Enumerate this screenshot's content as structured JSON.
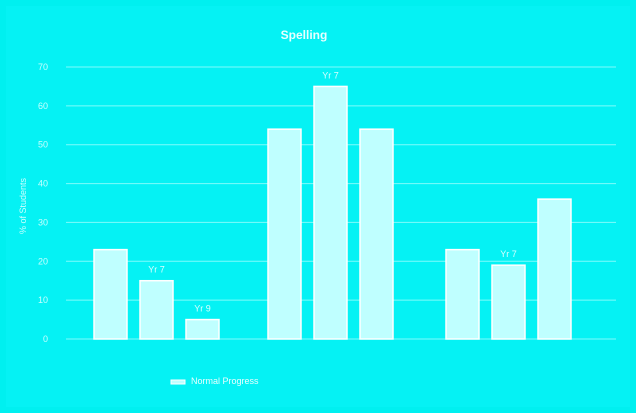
{
  "chart_data": {
    "type": "bar",
    "title": "Spelling",
    "ylabel": "% of Students",
    "xlabel": "",
    "ylim": [
      0,
      70
    ],
    "yticks": [
      0,
      10,
      20,
      30,
      40,
      50,
      60,
      70
    ],
    "categories": [
      "",
      "",
      ""
    ],
    "series": [
      {
        "name": "",
        "values": [
          23,
          54,
          23
        ],
        "bar_labels": [
          "",
          "",
          ""
        ]
      },
      {
        "name": "",
        "values": [
          15,
          65,
          19
        ],
        "bar_labels": [
          "Yr 7",
          "Yr 7",
          "Yr 7"
        ]
      },
      {
        "name": "",
        "values": [
          5,
          54,
          36
        ],
        "bar_labels": [
          "Yr 9",
          "",
          ""
        ]
      }
    ],
    "legend": {
      "placement": "bottom",
      "entries": [
        "Normal Progress"
      ]
    },
    "grid": true
  },
  "colors": {
    "background": "#00f0f0",
    "bar_fill": "#bfffff",
    "bar_stroke": "#ffffff",
    "grid": "#7ffbfb",
    "text": "#e8ffff"
  }
}
